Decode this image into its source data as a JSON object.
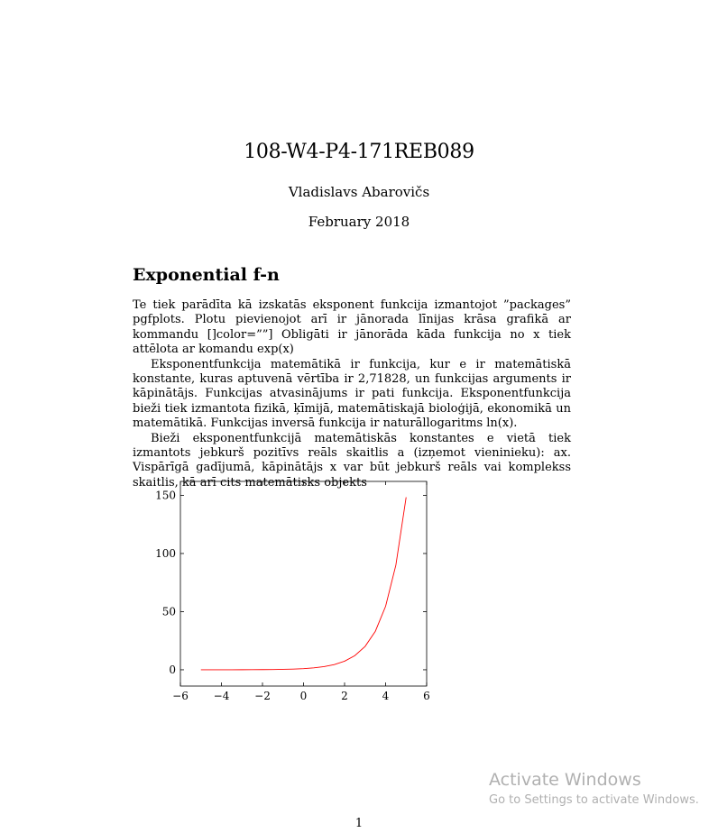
{
  "document": {
    "title": "108-W4-P4-171REB089",
    "author": "Vladislavs Abarovičs",
    "date": "February 2018",
    "section_title": "Exponential f-n",
    "paragraphs": [
      "Te tiek parādīta kā izskatās eksponent funkcija izmantojot ”packages” pgfplots. Plotu pievienojot arī ir jānorada līnijas krāsa grafikā ar kommandu []color=””] Obligāti ir jānorāda kāda funkcija no x tiek attēlota ar komandu exp(x)",
      "Eksponentfunkcija matemātikā ir funkcija, kur e ir matemātiskā konstante, kuras aptuvenā vērtība ir 2,71828, un funkcijas arguments ir kāpinātājs. Funkcijas atvasinājums ir pati funkcija. Eksponentfunkcija bieži tiek izmantota fizikā, ķīmijā, matemātiskajā bioloģijā, ekonomikā un matemātikā. Funkcijas inversā funkcija ir naturāllogaritms ln(x).",
      "Bieži eksponentfunkcijā matemātiskās konstantes e vietā tiek izmantots jebkurš pozitīvs reāls skaitlis a (izņemot vieninieku): ax. Vispārīgā gadījumā, kāpinātājs x var būt jebkurš reāls vai komplekss skaitlis, kā arī cits matemātisks objekts"
    ],
    "page_number": "1"
  },
  "chart_data": {
    "type": "line",
    "title": "",
    "xlabel": "",
    "ylabel": "",
    "xlim": [
      -6,
      6
    ],
    "ylim": [
      -14,
      162
    ],
    "x_ticks": [
      -6,
      -4,
      -2,
      0,
      2,
      4,
      6
    ],
    "y_ticks": [
      0,
      50,
      100,
      150
    ],
    "grid": false,
    "series": [
      {
        "color": "#ff0000",
        "x": [
          -5,
          -4.5,
          -4,
          -3.5,
          -3,
          -2.5,
          -2,
          -1.5,
          -1,
          -0.5,
          0,
          0.5,
          1,
          1.5,
          2,
          2.5,
          3,
          3.5,
          4,
          4.5,
          5
        ],
        "y": [
          0.01,
          0.01,
          0.02,
          0.03,
          0.05,
          0.08,
          0.14,
          0.22,
          0.37,
          0.61,
          1,
          1.65,
          2.72,
          4.48,
          7.39,
          12.18,
          20.09,
          33.12,
          54.6,
          90.02,
          148.41
        ]
      }
    ]
  },
  "watermark": {
    "line1": "Activate Windows",
    "line2": "Go to Settings to activate Windows."
  }
}
